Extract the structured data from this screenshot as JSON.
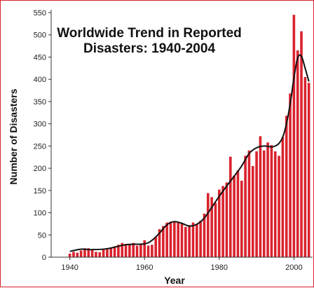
{
  "chart_data": {
    "type": "bar",
    "title_lines": [
      "Worldwide Trend in Reported",
      "Disasters: 1940-2004"
    ],
    "xlabel": "Year",
    "ylabel": "Number of Disasters",
    "xlim": [
      1935,
      2005
    ],
    "ylim": [
      0,
      550
    ],
    "x_ticks": [
      1940,
      1960,
      1980,
      2000
    ],
    "y_ticks": [
      0,
      50,
      100,
      150,
      200,
      250,
      300,
      350,
      400,
      450,
      500,
      550
    ],
    "grid": false,
    "colors": {
      "bars": "#d9232e",
      "trend": "#111111",
      "frame": "#d9232e"
    },
    "series": [
      {
        "kind": "bar",
        "x": [
          1940,
          1941,
          1942,
          1943,
          1944,
          1945,
          1946,
          1947,
          1948,
          1949,
          1950,
          1951,
          1952,
          1953,
          1954,
          1955,
          1956,
          1957,
          1958,
          1959,
          1960,
          1961,
          1962,
          1963,
          1964,
          1965,
          1966,
          1967,
          1968,
          1969,
          1970,
          1971,
          1972,
          1973,
          1974,
          1975,
          1976,
          1977,
          1978,
          1979,
          1980,
          1981,
          1982,
          1983,
          1984,
          1985,
          1986,
          1987,
          1988,
          1989,
          1990,
          1991,
          1992,
          1993,
          1994,
          1995,
          1996,
          1997,
          1998,
          1999,
          2000,
          2001,
          2002,
          2003,
          2004
        ],
        "values": [
          8,
          12,
          10,
          15,
          20,
          20,
          16,
          12,
          11,
          18,
          18,
          20,
          24,
          28,
          32,
          30,
          28,
          32,
          26,
          30,
          38,
          26,
          28,
          45,
          63,
          70,
          78,
          80,
          80,
          78,
          76,
          68,
          72,
          78,
          75,
          82,
          98,
          144,
          135,
          122,
          152,
          160,
          168,
          226,
          183,
          195,
          172,
          228,
          240,
          205,
          238,
          272,
          240,
          258,
          252,
          238,
          228,
          270,
          318,
          368,
          545,
          465,
          508,
          405,
          392
        ]
      },
      {
        "kind": "line",
        "smoothed_trend": true,
        "x": [
          1940,
          1943,
          1946,
          1950,
          1955,
          1960,
          1962,
          1964,
          1966,
          1968,
          1970,
          1972,
          1974,
          1976,
          1978,
          1980,
          1982,
          1984,
          1986,
          1988,
          1990,
          1992,
          1994,
          1995,
          1996,
          1997,
          1998,
          1999,
          2000,
          2001,
          2002,
          2003,
          2004
        ],
        "values": [
          13,
          18,
          17,
          19,
          28,
          30,
          38,
          54,
          73,
          80,
          76,
          70,
          74,
          88,
          112,
          137,
          160,
          182,
          205,
          233,
          246,
          250,
          248,
          250,
          256,
          270,
          300,
          345,
          403,
          448,
          452,
          425,
          395
        ]
      }
    ]
  }
}
